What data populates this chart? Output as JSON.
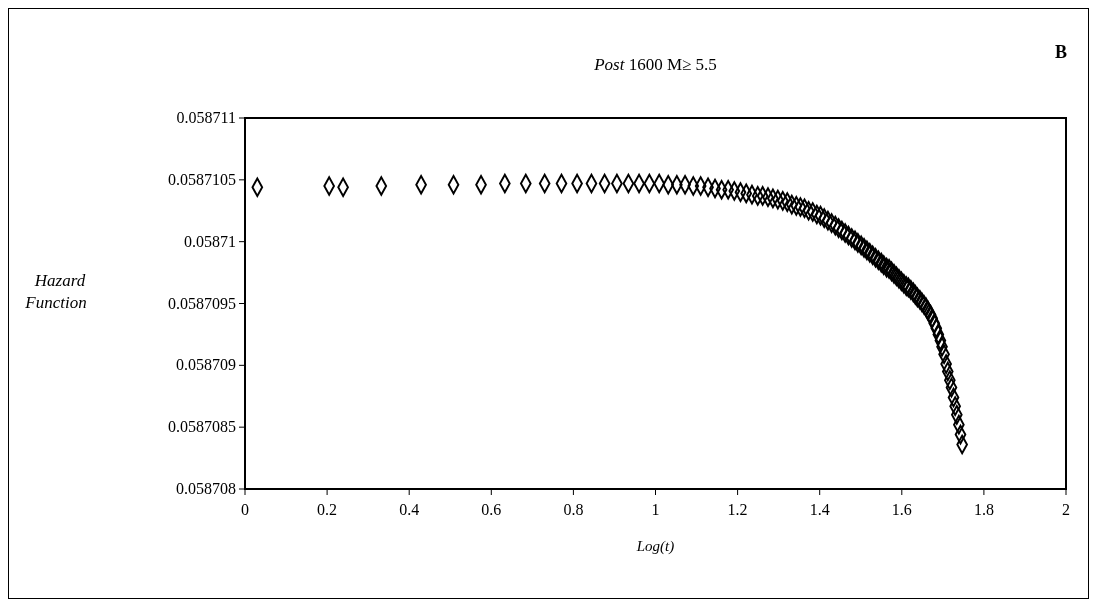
{
  "chart_data": {
    "type": "scatter",
    "title": "Post 1600 M≥ 5.5",
    "xlabel": "Log(t)",
    "ylabel": "Hazard Function",
    "annotations": [
      "B"
    ],
    "marker": "diamond",
    "grid": false,
    "xlim": [
      0,
      2
    ],
    "xticks": [
      0,
      0.2,
      0.4,
      0.6,
      0.8,
      1,
      1.2,
      1.4,
      1.6,
      1.8,
      2
    ],
    "ylim": [
      0.058708,
      0.058711
    ],
    "yticks": [
      0.058708,
      0.0587085,
      0.058709,
      0.0587095,
      0.05871,
      0.0587105,
      0.058711
    ],
    "series": [
      {
        "color": "#000000",
        "x": [
          0.03,
          0.205,
          0.239,
          0.332,
          0.429,
          0.508,
          0.575,
          0.633,
          0.684,
          0.73,
          0.771,
          0.809,
          0.844,
          0.876,
          0.906,
          0.934,
          0.96,
          0.985,
          1.009,
          1.031,
          1.052,
          1.072,
          1.092,
          1.11,
          1.128,
          1.145,
          1.161,
          1.177,
          1.192,
          1.207,
          1.221,
          1.235,
          1.249,
          1.261,
          1.274,
          1.286,
          1.298,
          1.31,
          1.321,
          1.332,
          1.343,
          1.353,
          1.363,
          1.373,
          1.383,
          1.393,
          1.402,
          1.411,
          1.42,
          1.429,
          1.438,
          1.446,
          1.454,
          1.462,
          1.47,
          1.478,
          1.486,
          1.493,
          1.501,
          1.508,
          1.515,
          1.522,
          1.529,
          1.536,
          1.543,
          1.55,
          1.556,
          1.563,
          1.569,
          1.575,
          1.581,
          1.587,
          1.593,
          1.599,
          1.605,
          1.611,
          1.616,
          1.622,
          1.628,
          1.633,
          1.638,
          1.644,
          1.649,
          1.654,
          1.659,
          1.664,
          1.67,
          1.674,
          1.679,
          1.684,
          1.689,
          1.694,
          1.698,
          1.703,
          1.708,
          1.712,
          1.717,
          1.721,
          1.726,
          1.73,
          1.734,
          1.739,
          1.743,
          1.747
        ],
        "values": [
          0.05871044,
          0.05871045,
          0.05871044,
          0.05871045,
          0.05871046,
          0.05871046,
          0.05871046,
          0.05871047,
          0.05871047,
          0.05871047,
          0.05871047,
          0.05871047,
          0.05871047,
          0.05871047,
          0.05871047,
          0.05871047,
          0.05871047,
          0.05871047,
          0.05871047,
          0.05871046,
          0.05871046,
          0.05871046,
          0.05871045,
          0.05871045,
          0.05871044,
          0.05871043,
          0.05871042,
          0.05871042,
          0.05871041,
          0.0587104,
          0.05871039,
          0.05871038,
          0.05871037,
          0.05871037,
          0.05871036,
          0.05871035,
          0.05871034,
          0.05871033,
          0.05871032,
          0.0587103,
          0.05871029,
          0.05871028,
          0.05871027,
          0.05871025,
          0.05871024,
          0.05871022,
          0.05871021,
          0.05871019,
          0.05871017,
          0.05871015,
          0.05871013,
          0.05871011,
          0.05871009,
          0.05871007,
          0.05871005,
          0.05871003,
          0.05871001,
          0.05870999,
          0.05870997,
          0.05870995,
          0.05870993,
          0.05870991,
          0.05870989,
          0.05870987,
          0.05870985,
          0.05870983,
          0.05870981,
          0.05870979,
          0.05870978,
          0.05870976,
          0.05870974,
          0.05870972,
          0.0587097,
          0.05870968,
          0.05870966,
          0.05870964,
          0.05870963,
          0.05870961,
          0.05870959,
          0.05870957,
          0.05870955,
          0.05870953,
          0.05870951,
          0.05870949,
          0.05870947,
          0.05870944,
          0.05870941,
          0.05870938,
          0.05870934,
          0.0587093,
          0.05870925,
          0.0587092,
          0.05870915,
          0.05870909,
          0.05870901,
          0.05870895,
          0.05870888,
          0.05870882,
          0.05870874,
          0.05870867,
          0.0587086,
          0.05870852,
          0.05870844,
          0.05870836
        ]
      }
    ]
  }
}
